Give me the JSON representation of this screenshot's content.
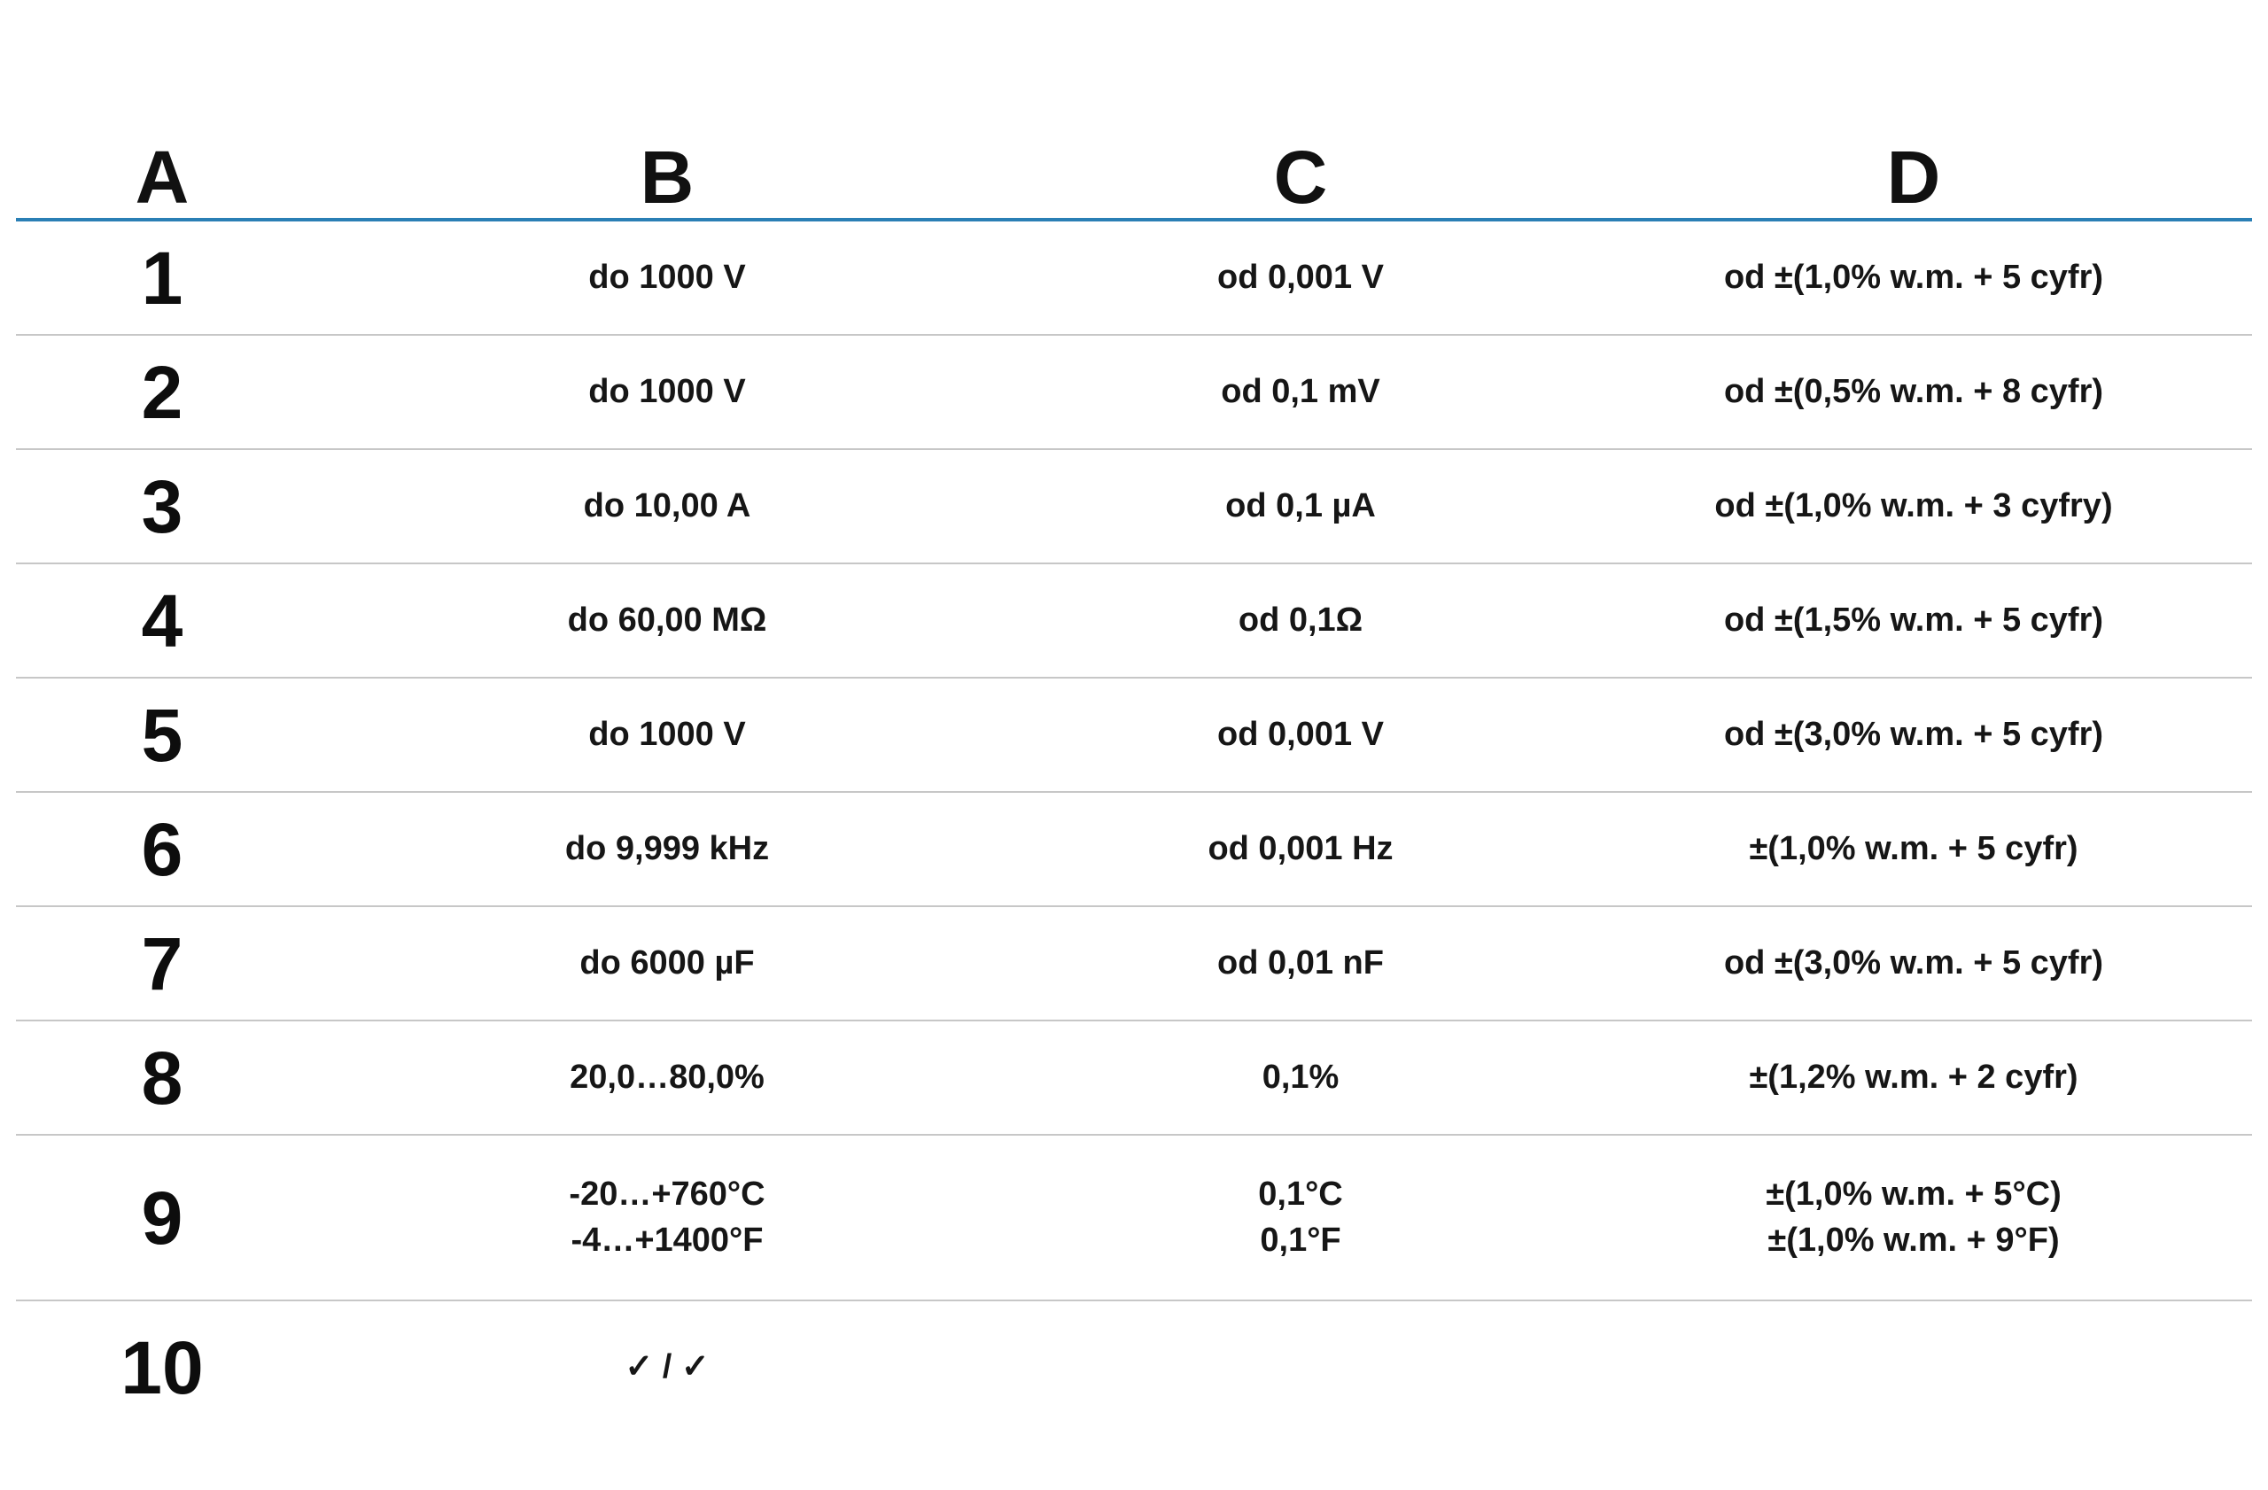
{
  "table": {
    "headers": [
      "A",
      "B",
      "C",
      "D"
    ],
    "rows": [
      {
        "a": "1",
        "b": [
          "do 1000 V"
        ],
        "c": [
          "od 0,001 V"
        ],
        "d": [
          "od ±(1,0% w.m. + 5 cyfr)"
        ]
      },
      {
        "a": "2",
        "b": [
          "do 1000 V"
        ],
        "c": [
          "od 0,1 mV"
        ],
        "d": [
          "od ±(0,5% w.m. + 8 cyfr)"
        ]
      },
      {
        "a": "3",
        "b": [
          "do 10,00 A"
        ],
        "c": [
          "od 0,1 µA"
        ],
        "d": [
          "od ±(1,0% w.m. + 3 cyfry)"
        ]
      },
      {
        "a": "4",
        "b": [
          "do 60,00 MΩ"
        ],
        "c": [
          "od 0,1Ω"
        ],
        "d": [
          "od ±(1,5% w.m. + 5 cyfr)"
        ]
      },
      {
        "a": "5",
        "b": [
          "do 1000 V"
        ],
        "c": [
          "od 0,001 V"
        ],
        "d": [
          "od ±(3,0% w.m. + 5 cyfr)"
        ]
      },
      {
        "a": "6",
        "b": [
          "do 9,999 kHz"
        ],
        "c": [
          "od 0,001 Hz"
        ],
        "d": [
          "±(1,0% w.m. + 5 cyfr)"
        ]
      },
      {
        "a": "7",
        "b": [
          "do 6000 µF"
        ],
        "c": [
          "od 0,01 nF"
        ],
        "d": [
          "od ±(3,0% w.m. + 5 cyfr)"
        ]
      },
      {
        "a": "8",
        "b": [
          "20,0…80,0%"
        ],
        "c": [
          "0,1%"
        ],
        "d": [
          "±(1,2% w.m. + 2 cyfr)"
        ]
      },
      {
        "a": "9",
        "b": [
          "-20…+760°C",
          "-4…+1400°F"
        ],
        "c": [
          "0,1°C",
          "0,1°F"
        ],
        "d": [
          "±(1,0% w.m. + 5°C)",
          "±(1,0% w.m. + 9°F)"
        ]
      },
      {
        "a": "10",
        "b": [
          "✓ / ✓"
        ],
        "c": [],
        "d": []
      }
    ],
    "colors": {
      "header_line": "#2a7fb5",
      "row_line": "#c7c7c7",
      "text": "#141414",
      "background": "#ffffff"
    }
  }
}
